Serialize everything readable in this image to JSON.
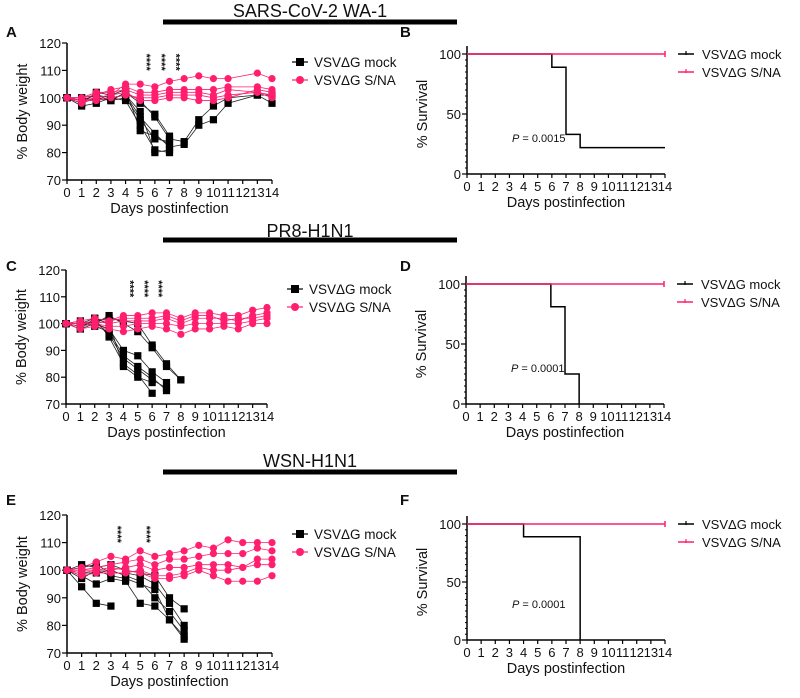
{
  "colors": {
    "mock": "#000000",
    "sna": "#ff1f6e"
  },
  "sections": [
    {
      "title": "SARS-CoV-2 WA-1"
    },
    {
      "title": "PR8-H1N1"
    },
    {
      "title": "WSN-H1N1"
    }
  ],
  "chart_data": [
    {
      "panel": "A",
      "type": "line",
      "ylabel": "% Body weight",
      "xlabel": "Days postinfection",
      "ylim": [
        70,
        120
      ],
      "yticks": [
        70,
        80,
        90,
        100,
        110,
        120
      ],
      "xticks": [
        0,
        1,
        2,
        3,
        4,
        5,
        6,
        7,
        8,
        9,
        10,
        11,
        12,
        13,
        14
      ],
      "xlim": [
        0,
        14
      ],
      "stars": [
        {
          "day": 5,
          "label": "****"
        },
        {
          "day": 6,
          "label": "****"
        },
        {
          "day": 7,
          "label": "****"
        }
      ],
      "legend": [
        "VSVΔG mock",
        "VSVΔG S/NA"
      ],
      "series": [
        {
          "name": "VSVΔG mock",
          "x": [
            0,
            1,
            2,
            3,
            4,
            5,
            6,
            7,
            8,
            9,
            10,
            11,
            13,
            14
          ],
          "mice": [
            [
              100,
              98,
              100,
              99,
              102,
              99,
              93,
              85,
              84,
              92,
              97,
              100,
              101,
              101
            ],
            [
              100,
              99,
              101,
              100,
              101,
              93,
              87,
              82,
              83,
              90,
              92,
              98,
              101,
              98
            ],
            [
              100,
              100,
              99,
              100,
              99,
              90,
              81,
              80
            ],
            [
              100,
              98,
              102,
              101,
              103,
              88,
              86,
              83
            ],
            [
              100,
              99,
              100,
              99,
              100,
              92,
              85,
              84
            ],
            [
              100,
              97,
              98,
              100,
              101,
              95,
              80,
              81
            ],
            [
              100,
              100,
              101,
              99,
              102,
              98,
              94,
              86
            ]
          ]
        },
        {
          "name": "VSVΔG S/NA",
          "x": [
            0,
            1,
            2,
            3,
            4,
            5,
            6,
            7,
            8,
            9,
            10,
            11,
            13,
            14
          ],
          "mice": [
            [
              100,
              99,
              100,
              101,
              105,
              105,
              104,
              106,
              107,
              108,
              107,
              107,
              109,
              107
            ],
            [
              100,
              100,
              101,
              103,
              104,
              102,
              102,
              103,
              103,
              103,
              103,
              104,
              104,
              103
            ],
            [
              100,
              99,
              99,
              100,
              101,
              100,
              100,
              101,
              101,
              101,
              100,
              101,
              102,
              101
            ],
            [
              100,
              98,
              100,
              101,
              102,
              99,
              99,
              100,
              100,
              99,
              99,
              100,
              103,
              102
            ],
            [
              100,
              100,
              102,
              102,
              103,
              101,
              101,
              102,
              102,
              102,
              101,
              103,
              102,
              100
            ]
          ]
        }
      ]
    },
    {
      "panel": "B",
      "type": "line",
      "subtype": "survival",
      "ylabel": "% Survival",
      "xlabel": "Days postinfection",
      "ylim": [
        0,
        100
      ],
      "yticks": [
        0,
        50,
        100
      ],
      "xticks": [
        0,
        1,
        2,
        3,
        4,
        5,
        6,
        7,
        8,
        9,
        10,
        11,
        12,
        13,
        14
      ],
      "xlim": [
        0,
        14
      ],
      "annotation": {
        "p_label": "P",
        "p_value": "= 0.0015"
      },
      "legend": [
        "VSVΔG mock",
        "VSVΔG S/NA"
      ],
      "series": [
        {
          "name": "VSVΔG mock",
          "steps": [
            [
              0,
              100
            ],
            [
              6,
              89
            ],
            [
              7,
              33
            ],
            [
              8,
              22
            ],
            [
              14,
              22
            ]
          ]
        },
        {
          "name": "VSVΔG S/NA",
          "steps": [
            [
              0,
              100
            ],
            [
              14,
              100
            ]
          ]
        }
      ]
    },
    {
      "panel": "C",
      "type": "line",
      "ylabel": "% Body weight",
      "xlabel": "Days postinfection",
      "ylim": [
        70,
        120
      ],
      "yticks": [
        70,
        80,
        90,
        100,
        110,
        120
      ],
      "xticks": [
        0,
        1,
        2,
        3,
        4,
        5,
        6,
        7,
        8,
        9,
        10,
        11,
        12,
        13,
        14
      ],
      "xlim": [
        0,
        14
      ],
      "stars": [
        {
          "day": 4,
          "label": "****"
        },
        {
          "day": 5,
          "label": "****"
        },
        {
          "day": 6,
          "label": "****"
        }
      ],
      "legend": [
        "VSVΔG mock",
        "VSVΔG S/NA"
      ],
      "series": [
        {
          "name": "VSVΔG mock",
          "x": [
            0,
            1,
            2,
            3,
            4,
            5,
            6,
            7,
            8
          ],
          "mice": [
            [
              100,
              99,
              101,
              102,
              101,
              100,
              92,
              85,
              79
            ],
            [
              100,
              98,
              100,
              103,
              100,
              97,
              91,
              84,
              79
            ],
            [
              100,
              100,
              102,
              95,
              85,
              81,
              74
            ],
            [
              100,
              101,
              99,
              97,
              88,
              84,
              80,
              75
            ],
            [
              100,
              99,
              100,
              98,
              90,
              88,
              82,
              78
            ],
            [
              100,
              100,
              101,
              96,
              87,
              83,
              79,
              76
            ],
            [
              100,
              98,
              102,
              100,
              84,
              80,
              78
            ]
          ]
        },
        {
          "name": "VSVΔG S/NA",
          "x": [
            0,
            1,
            2,
            3,
            4,
            5,
            6,
            7,
            8,
            9,
            10,
            11,
            12,
            13,
            14
          ],
          "mice": [
            [
              100,
              101,
              102,
              101,
              103,
              103,
              104,
              104,
              102,
              104,
              104,
              103,
              103,
              105,
              106
            ],
            [
              100,
              100,
              101,
              100,
              101,
              101,
              101,
              102,
              100,
              102,
              102,
              102,
              101,
              103,
              104
            ],
            [
              100,
              99,
              100,
              99,
              99,
              100,
              100,
              100,
              99,
              100,
              100,
              100,
              100,
              101,
              102
            ],
            [
              100,
              98,
              99,
              98,
              97,
              98,
              99,
              98,
              96,
              98,
              98,
              99,
              98,
              100,
              100
            ],
            [
              100,
              100,
              100,
              101,
              102,
              102,
              102,
              103,
              101,
              103,
              103,
              101,
              102,
              102,
              103
            ]
          ]
        }
      ]
    },
    {
      "panel": "D",
      "type": "line",
      "subtype": "survival",
      "ylabel": "% Survival",
      "xlabel": "Days postinfection",
      "ylim": [
        0,
        100
      ],
      "yticks": [
        0,
        50,
        100
      ],
      "xticks": [
        0,
        1,
        2,
        3,
        4,
        5,
        6,
        7,
        8,
        9,
        10,
        11,
        12,
        13,
        14
      ],
      "xlim": [
        0,
        14
      ],
      "annotation": {
        "p_label": "P",
        "p_value": "= 0.0001"
      },
      "legend": [
        "VSVΔG mock",
        "VSVΔG S/NA"
      ],
      "series": [
        {
          "name": "VSVΔG mock",
          "steps": [
            [
              0,
              100
            ],
            [
              6,
              81
            ],
            [
              7,
              25
            ],
            [
              8,
              0
            ]
          ]
        },
        {
          "name": "VSVΔG S/NA",
          "steps": [
            [
              0,
              100
            ],
            [
              14,
              100
            ]
          ]
        }
      ]
    },
    {
      "panel": "E",
      "type": "line",
      "ylabel": "% Body weight",
      "xlabel": "Days postinfection",
      "ylim": [
        70,
        120
      ],
      "yticks": [
        70,
        80,
        90,
        100,
        110,
        120
      ],
      "xticks": [
        0,
        1,
        2,
        3,
        4,
        5,
        6,
        7,
        8,
        9,
        10,
        11,
        12,
        13,
        14
      ],
      "xlim": [
        0,
        14
      ],
      "stars": [
        {
          "day": 3,
          "label": "****"
        },
        {
          "day": 5,
          "label": "****"
        }
      ],
      "legend": [
        "VSVΔG mock",
        "VSVΔG S/NA"
      ],
      "series": [
        {
          "name": "VSVΔG mock",
          "x": [
            0,
            1,
            2,
            3,
            4,
            5,
            6,
            7,
            8
          ],
          "mice": [
            [
              100,
              94,
              88,
              87
            ],
            [
              100,
              98,
              95,
              97,
              96,
              88,
              87,
              82,
              75
            ],
            [
              100,
              102,
              101,
              102,
              100,
              99,
              98,
              90,
              86
            ],
            [
              100,
              99,
              99,
              100,
              98,
              96,
              90,
              85,
              78
            ],
            [
              100,
              101,
              102,
              99,
              99,
              98,
              95,
              88,
              80
            ],
            [
              100,
              97,
              100,
              98,
              97,
              95,
              93,
              82,
              76
            ]
          ]
        },
        {
          "name": "VSVΔG S/NA",
          "x": [
            0,
            1,
            2,
            3,
            4,
            5,
            6,
            7,
            8,
            9,
            10,
            11,
            12,
            13,
            14
          ],
          "mice": [
            [
              100,
              101,
              103,
              105,
              104,
              107,
              105,
              106,
              107,
              109,
              108,
              111,
              110,
              110,
              110
            ],
            [
              100,
              100,
              101,
              102,
              103,
              104,
              102,
              104,
              104,
              105,
              106,
              106,
              106,
              108,
              107
            ],
            [
              100,
              99,
              100,
              100,
              101,
              102,
              100,
              101,
              101,
              102,
              102,
              102,
              101,
              104,
              104
            ],
            [
              100,
              98,
              99,
              99,
              99,
              100,
              98,
              98,
              99,
              101,
              100,
              100,
              101,
              102,
              102
            ],
            [
              100,
              100,
              100,
              101,
              100,
              99,
              97,
              97,
              98,
              100,
              98,
              96,
              96,
              96,
              98
            ]
          ]
        }
      ]
    },
    {
      "panel": "F",
      "type": "line",
      "subtype": "survival",
      "ylabel": "% Survival",
      "xlabel": "Days postinfection",
      "ylim": [
        0,
        100
      ],
      "yticks": [
        0,
        50,
        100
      ],
      "xticks": [
        0,
        1,
        2,
        3,
        4,
        5,
        6,
        7,
        8,
        9,
        10,
        11,
        12,
        13,
        14
      ],
      "xlim": [
        0,
        14
      ],
      "annotation": {
        "p_label": "P",
        "p_value": "= 0.0001"
      },
      "legend": [
        "VSVΔG mock",
        "VSVΔG S/NA"
      ],
      "series": [
        {
          "name": "VSVΔG mock",
          "steps": [
            [
              0,
              100
            ],
            [
              4,
              89
            ],
            [
              8,
              0
            ]
          ]
        },
        {
          "name": "VSVΔG S/NA",
          "steps": [
            [
              0,
              100
            ],
            [
              14,
              100
            ]
          ]
        }
      ]
    }
  ]
}
